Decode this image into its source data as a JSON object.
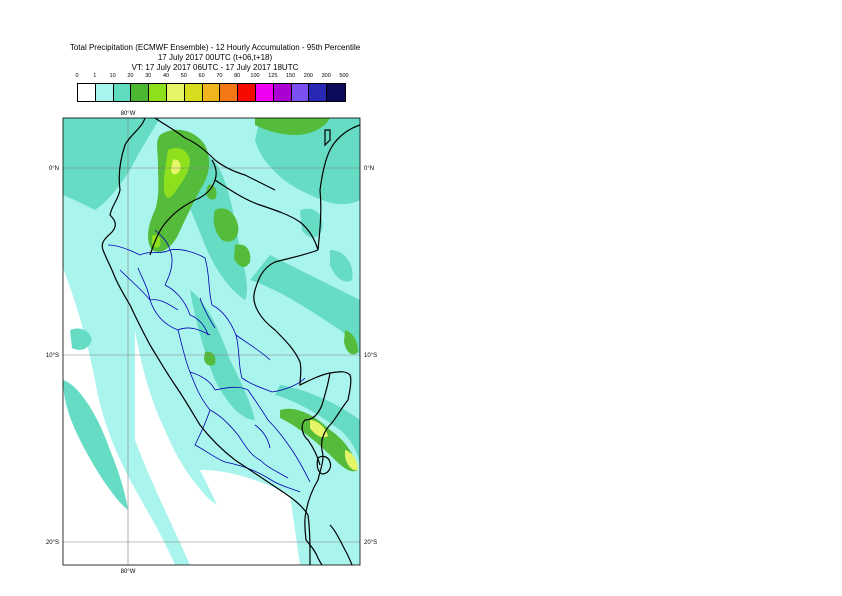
{
  "title": {
    "line1": "Total Precipitation (ECMWF Ensemble) - 12 Hourly Accumulation - 95th Percentile",
    "line2": "17 July 2017 00UTC (t+06,t+18)",
    "line3": "VT: 17 July 2017 06UTC - 17 July 2017 18UTC"
  },
  "legend": {
    "labels": [
      "0",
      "1",
      "10",
      "20",
      "30",
      "40",
      "50",
      "60",
      "70",
      "80",
      "100",
      "125",
      "150",
      "200",
      "300",
      "500"
    ],
    "colors": [
      "#ffffff",
      "#a8f5ee",
      "#5fdcc0",
      "#4cb832",
      "#8fe01c",
      "#e6f568",
      "#d8dc1e",
      "#f0b41e",
      "#f57814",
      "#f50a00",
      "#f000f0",
      "#aa00d2",
      "#7a50f0",
      "#2828b4",
      "#0c0a5a"
    ]
  },
  "map": {
    "lon_label_top": "80°W",
    "lon_label_bottom": "80°W",
    "lat_labels_left": [
      "0°N",
      "10°S",
      "20°S"
    ],
    "lat_labels_right": [
      "0°N",
      "10°S",
      "20°S"
    ],
    "colors": {
      "ocean_light": "#aaf4ee",
      "ocean_mid": "#66dcc4",
      "green": "#55bb3a",
      "yellowgreen": "#8fe01c",
      "yellow": "#e6f568",
      "border": "#000000",
      "admin": "#0000b0",
      "grid": "#808080"
    }
  }
}
